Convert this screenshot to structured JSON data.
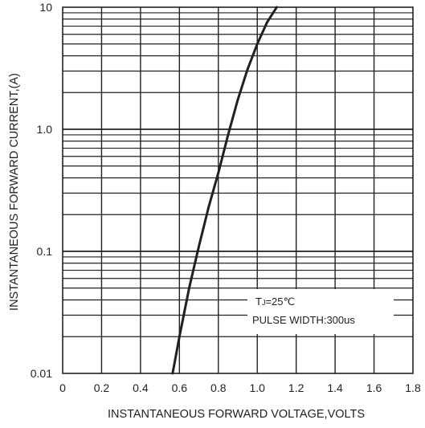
{
  "chart_data": {
    "type": "line",
    "title": "",
    "xlabel": "INSTANTANEOUS FORWARD VOLTAGE,VOLTS",
    "ylabel": "INSTANTANEOUS FORWARD CURRENT,(A)",
    "xlim": [
      0,
      1.8
    ],
    "ylim": [
      0.01,
      10
    ],
    "yscale": "log",
    "grid": true,
    "x_ticks": [
      "0",
      "0.2",
      "0.4",
      "0.6",
      "0.8",
      "1.0",
      "1.2",
      "1.4",
      "1.6",
      "1.8"
    ],
    "y_ticks": [
      "0.01",
      "0.1",
      "1.0",
      "10"
    ],
    "series": [
      {
        "name": "",
        "color": "#231f20",
        "x": [
          0.565,
          0.6,
          0.65,
          0.7,
          0.75,
          0.8,
          0.85,
          0.9,
          0.95,
          1.0,
          1.05,
          1.1
        ],
        "y": [
          0.01,
          0.02,
          0.05,
          0.11,
          0.23,
          0.44,
          0.9,
          1.75,
          3.1,
          5.0,
          7.5,
          10
        ]
      }
    ],
    "annotations": [
      {
        "text": "TJ=25℃",
        "prefix": "T",
        "subscript": "J",
        "suffix": "=25℃"
      },
      {
        "text": "PULSE WIDTH:300us"
      }
    ]
  }
}
